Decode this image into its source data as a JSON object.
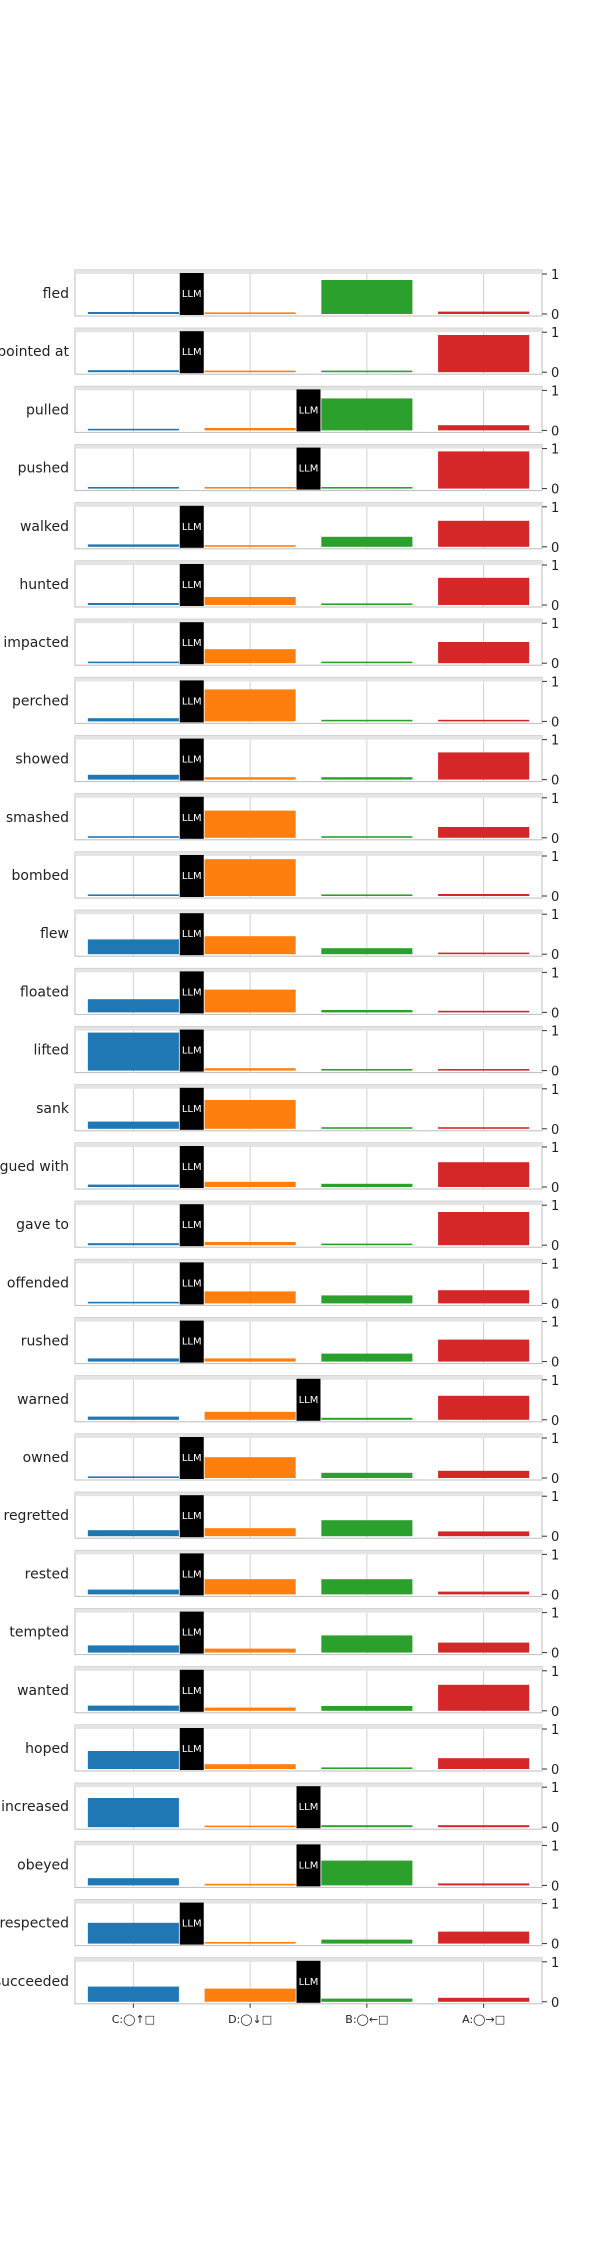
{
  "chart_data": {
    "type": "bar",
    "categories": [
      "C:◯↑□",
      "D:◯↓□",
      "B:◯←□",
      "A:◯→□"
    ],
    "ylim": [
      0,
      1
    ],
    "yticks": [
      "0",
      "1"
    ],
    "marker_label": "LLM",
    "grid": true,
    "colors": [
      "#1f77b4",
      "#ff7f0e",
      "#2ca02c",
      "#d62728"
    ],
    "rows": [
      {
        "label": "fled",
        "values": [
          0.05,
          0.02,
          0.85,
          0.06
        ],
        "llm": 1
      },
      {
        "label": "pointed at",
        "values": [
          0.05,
          0.02,
          0.0,
          0.93
        ],
        "llm": 1
      },
      {
        "label": "pulled",
        "values": [
          0.04,
          0.06,
          0.8,
          0.13
        ],
        "llm": 2
      },
      {
        "label": "pushed",
        "values": [
          0.04,
          0.02,
          0.0,
          0.93
        ],
        "llm": 2
      },
      {
        "label": "walked",
        "values": [
          0.06,
          0.03,
          0.25,
          0.65
        ],
        "llm": 1
      },
      {
        "label": "hunted",
        "values": [
          0.05,
          0.2,
          0.0,
          0.68
        ],
        "llm": 1
      },
      {
        "label": "impacted",
        "values": [
          0.04,
          0.35,
          0.0,
          0.53
        ],
        "llm": 1
      },
      {
        "label": "perched",
        "values": [
          0.08,
          0.8,
          0.02,
          0.02
        ],
        "llm": 1
      },
      {
        "label": "showed",
        "values": [
          0.12,
          0.06,
          0.06,
          0.68
        ],
        "llm": 1
      },
      {
        "label": "smashed",
        "values": [
          0.02,
          0.68,
          0.0,
          0.27
        ],
        "llm": 1
      },
      {
        "label": "bombed",
        "values": [
          0.02,
          0.92,
          0.0,
          0.05
        ],
        "llm": 1
      },
      {
        "label": "flew",
        "values": [
          0.37,
          0.45,
          0.15,
          0.0
        ],
        "llm": 1
      },
      {
        "label": "floated",
        "values": [
          0.33,
          0.57,
          0.06,
          0.0
        ],
        "llm": 1
      },
      {
        "label": "lifted",
        "values": [
          0.95,
          0.06,
          0.0,
          0.0
        ],
        "llm": 1
      },
      {
        "label": "sank",
        "values": [
          0.18,
          0.72,
          0.0,
          0.0
        ],
        "llm": 1
      },
      {
        "label": "argued with",
        "values": [
          0.06,
          0.13,
          0.08,
          0.62
        ],
        "llm": 1
      },
      {
        "label": "gave to",
        "values": [
          0.05,
          0.08,
          0.0,
          0.83
        ],
        "llm": 1
      },
      {
        "label": "offended",
        "values": [
          0.04,
          0.3,
          0.2,
          0.33
        ],
        "llm": 1
      },
      {
        "label": "rushed",
        "values": [
          0.08,
          0.08,
          0.2,
          0.55
        ],
        "llm": 1
      },
      {
        "label": "warned",
        "values": [
          0.08,
          0.2,
          0.05,
          0.6
        ],
        "llm": 2
      },
      {
        "label": "owned",
        "values": [
          0.03,
          0.52,
          0.13,
          0.18
        ],
        "llm": 1
      },
      {
        "label": "regretted",
        "values": [
          0.15,
          0.2,
          0.4,
          0.12
        ],
        "llm": 1
      },
      {
        "label": "rested",
        "values": [
          0.12,
          0.38,
          0.38,
          0.07
        ],
        "llm": 1
      },
      {
        "label": "tempted",
        "values": [
          0.18,
          0.1,
          0.43,
          0.25
        ],
        "llm": 1
      },
      {
        "label": "wanted",
        "values": [
          0.13,
          0.08,
          0.12,
          0.65
        ],
        "llm": 1
      },
      {
        "label": "hoped",
        "values": [
          0.45,
          0.12,
          0.03,
          0.27
        ],
        "llm": 1
      },
      {
        "label": "increased",
        "values": [
          0.73,
          0.03,
          0.05,
          0.05
        ],
        "llm": 2
      },
      {
        "label": "obeyed",
        "values": [
          0.18,
          0.02,
          0.62,
          0.05
        ],
        "llm": 2
      },
      {
        "label": "respected",
        "values": [
          0.52,
          0.0,
          0.1,
          0.3
        ],
        "llm": 1
      },
      {
        "label": "succeeded",
        "values": [
          0.38,
          0.33,
          0.08,
          0.1
        ],
        "llm": 2
      }
    ]
  }
}
